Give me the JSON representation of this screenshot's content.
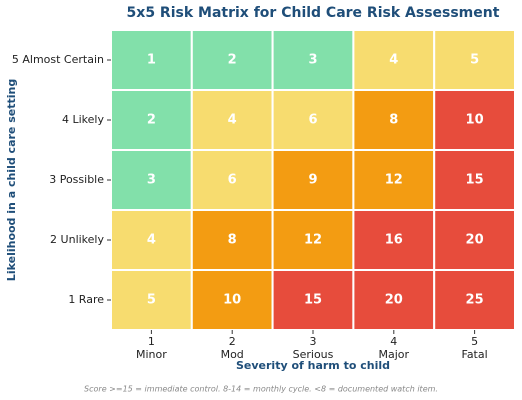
{
  "chart_data": {
    "type": "heatmap",
    "title": "5x5 Risk Matrix for Child Care Risk Assessment",
    "x_label": "Severity of harm to child",
    "y_label": "Likelihood in a child care setting",
    "x_categories": [
      "1\nMinor",
      "2\nMod",
      "3\nSerious",
      "4\nMajor",
      "5\nFatal"
    ],
    "y_categories": [
      "5 Almost Certain",
      "4 Likely",
      "3 Possible",
      "2 Unlikely",
      "1 Rare"
    ],
    "values": [
      [
        1,
        2,
        3,
        4,
        5
      ],
      [
        2,
        4,
        6,
        8,
        10
      ],
      [
        3,
        6,
        9,
        12,
        15
      ],
      [
        4,
        8,
        12,
        16,
        20
      ],
      [
        5,
        10,
        15,
        20,
        25
      ]
    ],
    "cell_colors": [
      [
        "#82e0aa",
        "#82e0aa",
        "#82e0aa",
        "#f7dc6f",
        "#f7dc6f"
      ],
      [
        "#82e0aa",
        "#f7dc6f",
        "#f7dc6f",
        "#f39c12",
        "#e74c3c"
      ],
      [
        "#82e0aa",
        "#f7dc6f",
        "#f39c12",
        "#f39c12",
        "#e74c3c"
      ],
      [
        "#f7dc6f",
        "#f39c12",
        "#f39c12",
        "#e74c3c",
        "#e74c3c"
      ],
      [
        "#f7dc6f",
        "#f39c12",
        "#e74c3c",
        "#e74c3c",
        "#e74c3c"
      ]
    ],
    "footnote": "Score >=15 = immediate control. 8-14 = monthly cycle. <8 = documented watch item."
  }
}
